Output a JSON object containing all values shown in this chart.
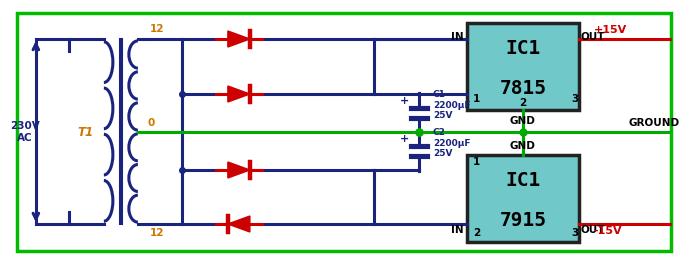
{
  "bg_color": "#ffffff",
  "border_color": "#00bb00",
  "wire_color": "#1a237e",
  "ground_color": "#00aa00",
  "diode_color": "#cc0000",
  "red_wire_color": "#cc0000",
  "ic_fill_color": "#70c8c8",
  "ic_border_color": "#111111",
  "text_color_dark": "#1a237e",
  "text_color_orange": "#cc7700",
  "ac_label": "230V\nAC",
  "transformer_label": "T1",
  "tap_top": "12",
  "tap_mid": "0",
  "tap_bot": "12",
  "c1_label": "C1\n2200μF\n25V",
  "c2_label": "C2\n2200μF\n25V",
  "out_top": "+15V",
  "out_bot": "-15V",
  "ground_label": "GROUND",
  "gnd_label": "GND",
  "in_label": "IN",
  "out_label": "OUT",
  "pin1": "1",
  "pin2": "2",
  "pin3": "3",
  "ic1_name": "IC1",
  "ic1_num": "7815",
  "ic2_name": "IC1",
  "ic2_num": "7915",
  "lw": 2.2
}
